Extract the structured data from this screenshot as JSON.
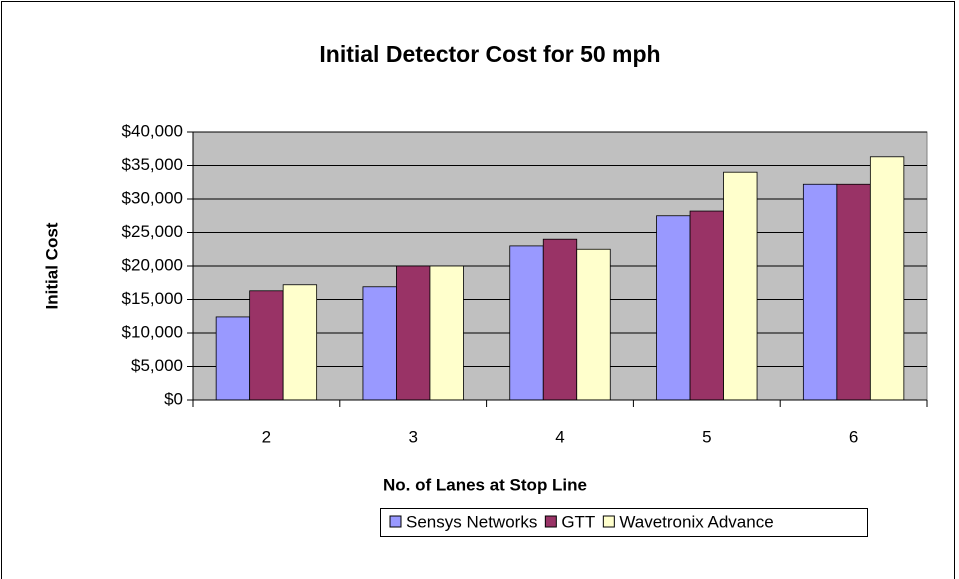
{
  "chart_data": {
    "type": "bar",
    "title": "Initial Detector Cost for 50 mph",
    "x_label": "No. of Lanes at Stop Line",
    "y_label": "Initial Cost",
    "categories": [
      "2",
      "3",
      "4",
      "5",
      "6"
    ],
    "series": [
      {
        "name": "Sensys Networks",
        "color": "#9999ff",
        "values": [
          12400,
          16900,
          23000,
          27500,
          32200
        ]
      },
      {
        "name": "GTT",
        "color": "#993366",
        "values": [
          16300,
          20000,
          24000,
          28200,
          32200
        ]
      },
      {
        "name": "Wavetronix Advance",
        "color": "#ffffcc",
        "values": [
          17200,
          20000,
          22500,
          34000,
          36300
        ]
      }
    ],
    "ylim": [
      0,
      40000
    ],
    "yticks": [
      {
        "value": 0,
        "label": "$0"
      },
      {
        "value": 5000,
        "label": "$5,000"
      },
      {
        "value": 10000,
        "label": "$10,000"
      },
      {
        "value": 15000,
        "label": "$15,000"
      },
      {
        "value": 20000,
        "label": "$20,000"
      },
      {
        "value": 25000,
        "label": "$25,000"
      },
      {
        "value": 30000,
        "label": "$30,000"
      },
      {
        "value": 35000,
        "label": "$35,000"
      },
      {
        "value": 40000,
        "label": "$40,000"
      }
    ],
    "grid": true,
    "legend": "bottom"
  }
}
